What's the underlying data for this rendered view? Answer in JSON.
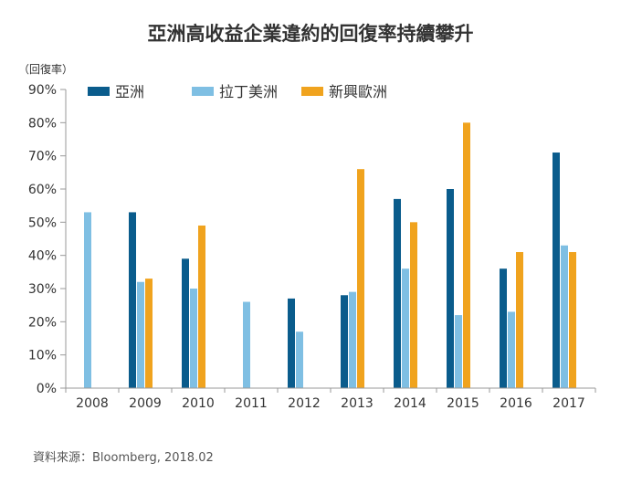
{
  "chart_data": {
    "type": "bar",
    "title": "亞洲高收益企業違約的回復率持續攀升",
    "unit_label": "（回復率）",
    "categories": [
      "2008",
      "2009",
      "2010",
      "2011",
      "2012",
      "2013",
      "2014",
      "2015",
      "2016",
      "2017"
    ],
    "series": [
      {
        "name": "亞洲",
        "color": "#0a5c8c",
        "values": [
          null,
          53,
          39,
          null,
          27,
          28,
          57,
          60,
          36,
          71
        ]
      },
      {
        "name": "拉丁美洲",
        "color": "#7fbfe3",
        "values": [
          53,
          32,
          30,
          26,
          17,
          29,
          36,
          22,
          23,
          43
        ]
      },
      {
        "name": "新興歐洲",
        "color": "#f0a31e",
        "values": [
          null,
          33,
          49,
          null,
          null,
          66,
          50,
          80,
          41,
          41
        ]
      }
    ],
    "ylim": [
      0,
      90
    ],
    "yticks": [
      0,
      10,
      20,
      30,
      40,
      50,
      60,
      70,
      80,
      90
    ],
    "ytick_labels": [
      "0%",
      "10%",
      "20%",
      "30%",
      "40%",
      "50%",
      "60%",
      "70%",
      "80%",
      "90%"
    ],
    "grid": false,
    "legend_position": "top",
    "source": "資料來源：Bloomberg, 2018.02"
  }
}
